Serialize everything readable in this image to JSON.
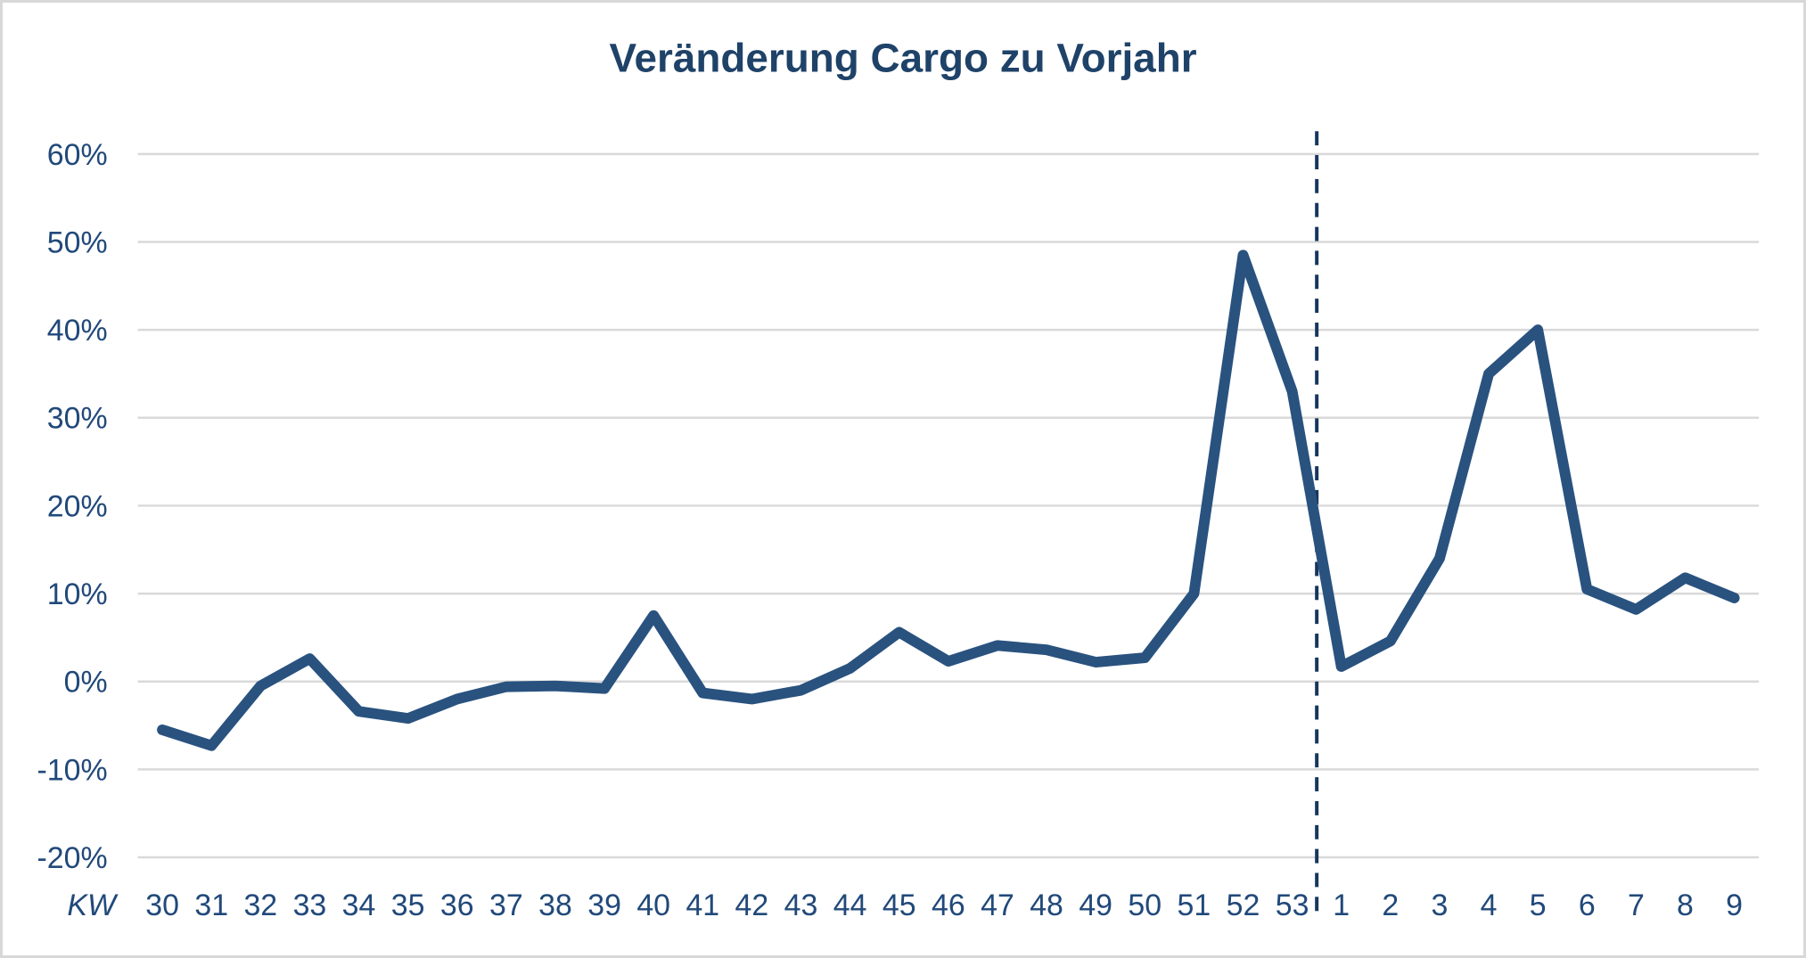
{
  "chart_data": {
    "type": "line",
    "title": "Veränderung Cargo zu Vorjahr",
    "x_axis_label": "KW",
    "categories": [
      "30",
      "31",
      "32",
      "33",
      "34",
      "35",
      "36",
      "37",
      "38",
      "39",
      "40",
      "41",
      "42",
      "43",
      "44",
      "45",
      "46",
      "47",
      "48",
      "49",
      "50",
      "51",
      "52",
      "53",
      "1",
      "2",
      "3",
      "4",
      "5",
      "6",
      "7",
      "8",
      "9"
    ],
    "values": [
      -5.5,
      -7.3,
      -0.5,
      2.6,
      -3.4,
      -4.2,
      -2.0,
      -0.6,
      -0.5,
      -0.8,
      7.5,
      -1.3,
      -2.0,
      -1.0,
      1.5,
      5.6,
      2.3,
      4.1,
      3.6,
      2.2,
      2.7,
      10.0,
      48.5,
      33.0,
      1.7,
      4.6,
      14.0,
      35.0,
      40.0,
      10.5,
      8.2,
      11.8,
      9.5
    ],
    "series": [
      {
        "name": "Veränderung Cargo zu Vorjahr",
        "values": [
          -5.5,
          -7.3,
          -0.5,
          2.6,
          -3.4,
          -4.2,
          -2.0,
          -0.6,
          -0.5,
          -0.8,
          7.5,
          -1.3,
          -2.0,
          -1.0,
          1.5,
          5.6,
          2.3,
          4.1,
          3.6,
          2.2,
          2.7,
          10.0,
          48.5,
          33.0,
          1.7,
          4.6,
          14.0,
          35.0,
          40.0,
          10.5,
          8.2,
          11.8,
          9.5
        ]
      }
    ],
    "y_ticks": [
      {
        "value": 60,
        "label": "60%"
      },
      {
        "value": 50,
        "label": "50%"
      },
      {
        "value": 40,
        "label": "40%"
      },
      {
        "value": 30,
        "label": "30%"
      },
      {
        "value": 20,
        "label": "20%"
      },
      {
        "value": 10,
        "label": "10%"
      },
      {
        "value": 0,
        "label": "0%"
      },
      {
        "value": -10,
        "label": "-10%"
      },
      {
        "value": -20,
        "label": "-20%"
      }
    ],
    "ylim": [
      -20,
      60
    ],
    "grid": true,
    "legend": "none",
    "divider_after_index": 23,
    "divider_style": "dashed",
    "colors": {
      "line": "#29527F",
      "title": "#1F4268",
      "axis_labels": "#21497A",
      "gridlines": "#D9D9D9",
      "divider": "#17365D",
      "frame_border": "#D8D8D8",
      "background": "#FFFFFF"
    }
  }
}
